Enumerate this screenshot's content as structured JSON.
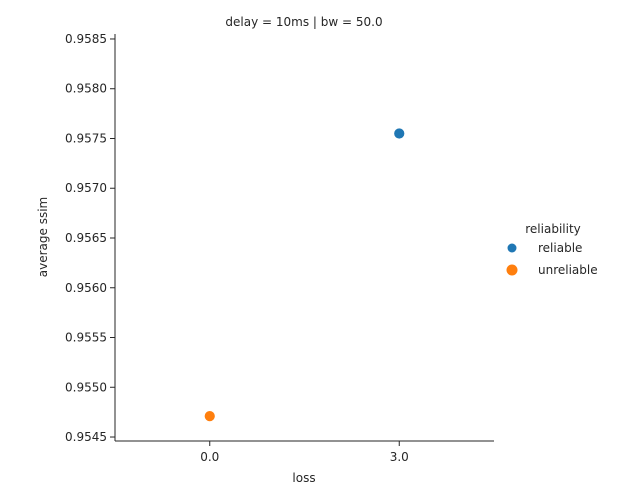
{
  "chart_data": {
    "type": "scatter",
    "title": "delay = 10ms | bw = 50.0",
    "xlabel": "loss",
    "ylabel": "average ssim",
    "categories": [
      "0.0",
      "3.0"
    ],
    "yticks": [
      "0.9545",
      "0.9550",
      "0.9555",
      "0.9560",
      "0.9565",
      "0.9570",
      "0.9575",
      "0.9580",
      "0.9585"
    ],
    "ylim": [
      0.95446,
      0.95855
    ],
    "grid": false,
    "legend": {
      "title": "reliability",
      "placement": "right"
    },
    "series": [
      {
        "name": "reliable",
        "color": "#1f77b4",
        "points": [
          {
            "x": "3.0",
            "y": 0.95755
          }
        ]
      },
      {
        "name": "unreliable",
        "color": "#ff7f0e",
        "points": [
          {
            "x": "0.0",
            "y": 0.95471
          }
        ]
      }
    ]
  }
}
